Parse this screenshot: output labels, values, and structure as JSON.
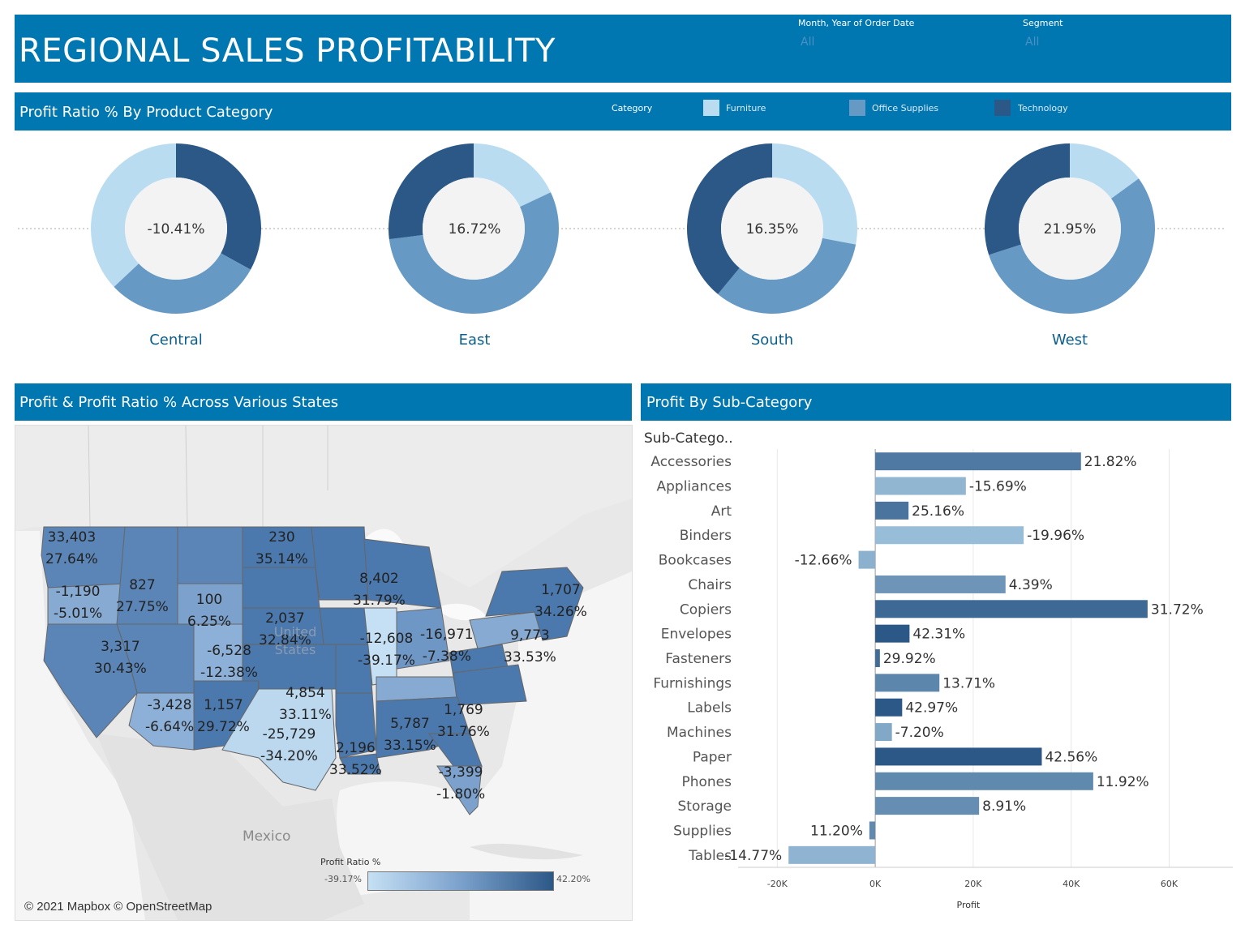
{
  "header": {
    "title": "REGIONAL SALES PROFITABILITY",
    "filters": [
      {
        "label": "Month, Year of Order Date",
        "value": "All"
      },
      {
        "label": "Segment",
        "value": "All"
      }
    ]
  },
  "donut_section": {
    "title": "Profit Ratio % By Product Category",
    "legend_title": "Category",
    "legend": [
      {
        "label": "Furniture",
        "color": "#b9dcf1"
      },
      {
        "label": "Office Supplies",
        "color": "#6799c5"
      },
      {
        "label": "Technology",
        "color": "#2c5887"
      }
    ]
  },
  "map_section": {
    "title": "Profit & Profit Ratio % Across Various States",
    "country_label": "United States",
    "country_label_2": "Mexico",
    "attribution": "© 2021 Mapbox © OpenStreetMap",
    "legend_title": "Profit Ratio %",
    "legend_min": "-39.17%",
    "legend_max": "42.20%",
    "states": [
      {
        "profit": "33,403",
        "ratio": "27.64%"
      },
      {
        "profit": "-1,190",
        "ratio": "-5.01%"
      },
      {
        "profit": "827",
        "ratio": "27.75%"
      },
      {
        "profit": "230",
        "ratio": "35.14%"
      },
      {
        "profit": "100",
        "ratio": "6.25%"
      },
      {
        "profit": "2,037",
        "ratio": "32.84%"
      },
      {
        "profit": "8,402",
        "ratio": "31.79%"
      },
      {
        "profit": "1,707",
        "ratio": "34.26%"
      },
      {
        "profit": "3,317",
        "ratio": "30.43%"
      },
      {
        "profit": "-6,528",
        "ratio": "-12.38%"
      },
      {
        "profit": "-12,608",
        "ratio": "-39.17%"
      },
      {
        "profit": "-16,971",
        "ratio": "-7.38%"
      },
      {
        "profit": "9,773",
        "ratio": "33.53%"
      },
      {
        "profit": "4,854",
        "ratio": "33.11%"
      },
      {
        "profit": "-3,428",
        "ratio": "-6.64%"
      },
      {
        "profit": "1,157",
        "ratio": "29.72%"
      },
      {
        "profit": "1,769",
        "ratio": "31.76%"
      },
      {
        "profit": "5,787",
        "ratio": "33.15%"
      },
      {
        "profit": "-25,729",
        "ratio": "-34.20%"
      },
      {
        "profit": "2,196",
        "ratio": "33.52%"
      },
      {
        "profit": "-3,399",
        "ratio": "-1.80%"
      }
    ]
  },
  "bar_section": {
    "title": "Profit By Sub-Category",
    "column_header": "Sub-Catego.."
  },
  "chart_data": [
    {
      "type": "pie",
      "subtype": "donut",
      "title": "Profit Ratio % By Product Category",
      "legend": [
        "Furniture",
        "Office Supplies",
        "Technology"
      ],
      "legend_placement": "top-right",
      "colors": [
        "#b9dcf1",
        "#6799c5",
        "#2c5887"
      ],
      "charts": [
        {
          "region": "Central",
          "center_label": "-10.41%",
          "shares": [
            0.37,
            0.3,
            0.33
          ]
        },
        {
          "region": "East",
          "center_label": "16.72%",
          "shares": [
            0.18,
            0.55,
            0.27
          ]
        },
        {
          "region": "South",
          "center_label": "16.35%",
          "shares": [
            0.28,
            0.33,
            0.39
          ]
        },
        {
          "region": "West",
          "center_label": "21.95%",
          "shares": [
            0.15,
            0.55,
            0.3
          ]
        }
      ]
    },
    {
      "type": "bar",
      "orientation": "horizontal",
      "title": "Profit By Sub-Category",
      "xlabel": "Profit",
      "ylabel": "Sub-Catego..",
      "xlim": [
        -28000,
        73000
      ],
      "xticks": [
        -20000,
        0,
        20000,
        40000,
        60000
      ],
      "xtick_labels": [
        "-20K",
        "0K",
        "20K",
        "40K",
        "60K"
      ],
      "grid": true,
      "categories": [
        "Accessories",
        "Appliances",
        "Art",
        "Binders",
        "Bookcases",
        "Chairs",
        "Copiers",
        "Envelopes",
        "Fasteners",
        "Furnishings",
        "Labels",
        "Machines",
        "Paper",
        "Phones",
        "Storage",
        "Supplies",
        "Tables"
      ],
      "values": [
        42000,
        18500,
        6800,
        30300,
        -3400,
        26600,
        55600,
        7000,
        950,
        13100,
        5500,
        3400,
        34000,
        44500,
        21200,
        -1200,
        -17700
      ],
      "labels": [
        "21.82%",
        "-15.69%",
        "25.16%",
        "-19.96%",
        "-12.66%",
        "4.39%",
        "31.72%",
        "42.31%",
        "29.92%",
        "13.71%",
        "42.97%",
        "-7.20%",
        "42.56%",
        "11.92%",
        "8.91%",
        "11.20%",
        "-14.77%"
      ],
      "color_values": [
        21.82,
        -15.69,
        25.16,
        -19.96,
        -12.66,
        4.39,
        31.72,
        42.31,
        29.92,
        13.71,
        42.97,
        -7.2,
        42.56,
        11.92,
        8.91,
        11.2,
        -14.77
      ],
      "color_range": [
        -39.17,
        42.2
      ],
      "color_scale": [
        "#b9dcf1",
        "#2c5887"
      ]
    }
  ]
}
